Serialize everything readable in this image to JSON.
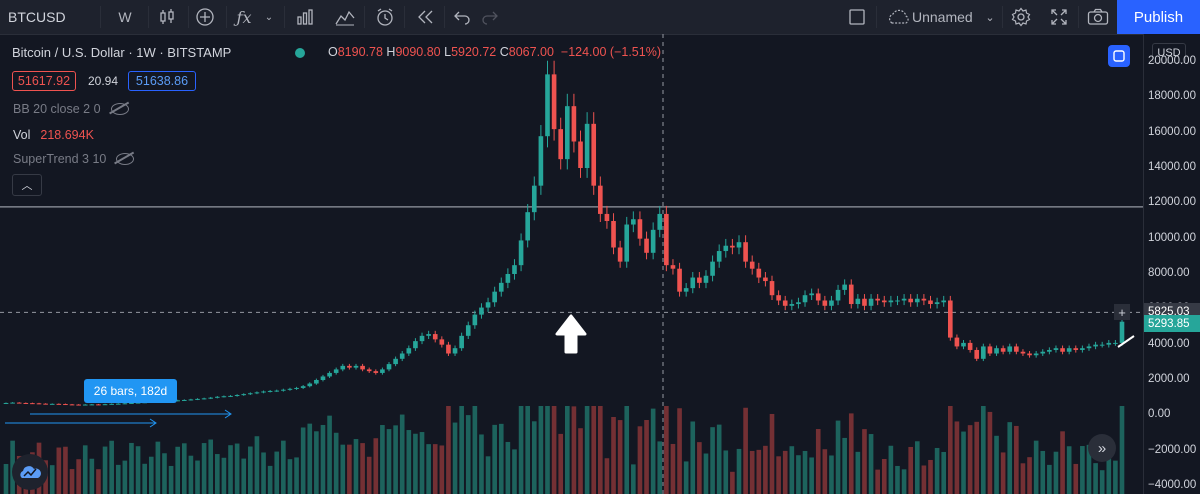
{
  "toolbar": {
    "symbol": "BTCUSD",
    "interval": "W",
    "layout_name": "Unnamed",
    "publish_label": "Publish",
    "icons": [
      "candles-icon",
      "add-indicator-icon",
      "fx-icon",
      "bar-chart-icon",
      "line-chart-icon",
      "alarm-icon",
      "replay-icon",
      "undo-icon",
      "redo-icon",
      "square-icon",
      "cloud-icon",
      "chevron-down-icon",
      "gear-icon",
      "fullscreen-icon",
      "camera-icon"
    ]
  },
  "legend": {
    "title": "Bitcoin / U.S. Dollar · 1W · BITSTAMP",
    "open_label": "O",
    "open": "8190.78",
    "high_label": "H",
    "high": "9090.80",
    "low_label": "L",
    "low": "5920.72",
    "close_label": "C",
    "close": "8067.00",
    "change": "−124.00 (−1.51%)",
    "bid": "51617.92",
    "spread": "20.94",
    "ask": "51638.86"
  },
  "indicators": {
    "bb": "BB 20 close 2 0",
    "vol_label": "Vol",
    "vol_value": "218.694K",
    "supertrend": "SuperTrend 3 10"
  },
  "measure_label": "26 bars, 182d",
  "axis": {
    "currency": "USD",
    "ticks": [
      "20000.00",
      "18000.00",
      "16000.00",
      "14000.00",
      "12000.00",
      "10000.00",
      "8000.00",
      "6000.00",
      "4000.00",
      "2000.00",
      "0.00",
      "−2000.00",
      "−4000.00"
    ],
    "crosshair_price": "5825.03",
    "last_price": "5293.85"
  },
  "colors": {
    "background": "#131722",
    "up": "#26a69a",
    "down": "#ef5350",
    "accent": "#2962ff"
  },
  "chart_data": {
    "type": "candlestick",
    "ticker": "BTCUSD",
    "interval": "1W",
    "exchange": "BITSTAMP",
    "ylim": [
      -4000,
      20000
    ],
    "grid": false,
    "horizontal_line": 11800,
    "crosshair_price": 5825.03,
    "last_price": 5293.85,
    "closes": [
      700,
      720,
      700,
      690,
      680,
      660,
      640,
      650,
      640,
      620,
      610,
      600,
      610,
      620,
      610,
      630,
      650,
      660,
      680,
      700,
      720,
      740,
      760,
      780,
      800,
      820,
      850,
      870,
      900,
      930,
      960,
      1000,
      1050,
      1080,
      1100,
      1150,
      1200,
      1250,
      1300,
      1350,
      1380,
      1400,
      1450,
      1500,
      1550,
      1650,
      1800,
      2000,
      2200,
      2400,
      2600,
      2800,
      2700,
      2800,
      2600,
      2500,
      2400,
      2600,
      2900,
      3200,
      3500,
      3800,
      4200,
      4500,
      4600,
      4300,
      4000,
      3500,
      3800,
      4500,
      5100,
      5700,
      6100,
      6400,
      7000,
      7500,
      8000,
      8500,
      9900,
      11500,
      13000,
      15800,
      19300,
      16200,
      14500,
      17500,
      15500,
      14000,
      16500,
      13000,
      11400,
      11000,
      9500,
      8700,
      10800,
      11100,
      10000,
      9200,
      10500,
      11400,
      8500,
      8300,
      7000,
      7200,
      7800,
      7500,
      7900,
      8700,
      9300,
      9600,
      9500,
      9800,
      8700,
      8300,
      7800,
      7600,
      6800,
      6500,
      6200,
      6300,
      6400,
      6800,
      6900,
      6500,
      6200,
      6500,
      7100,
      7400,
      6300,
      6600,
      6200,
      6600,
      6500,
      6400,
      6500,
      6500,
      6600,
      6400,
      6600,
      6500,
      6300,
      6400,
      6500,
      4400,
      3900,
      4100,
      3700,
      3200,
      3900,
      3500,
      3800,
      3600,
      3900,
      3600,
      3500,
      3400,
      3500,
      3600,
      3700,
      3800,
      3600,
      3800,
      3700,
      3800,
      3900,
      4000,
      4000,
      4100,
      4100,
      5300
    ]
  }
}
